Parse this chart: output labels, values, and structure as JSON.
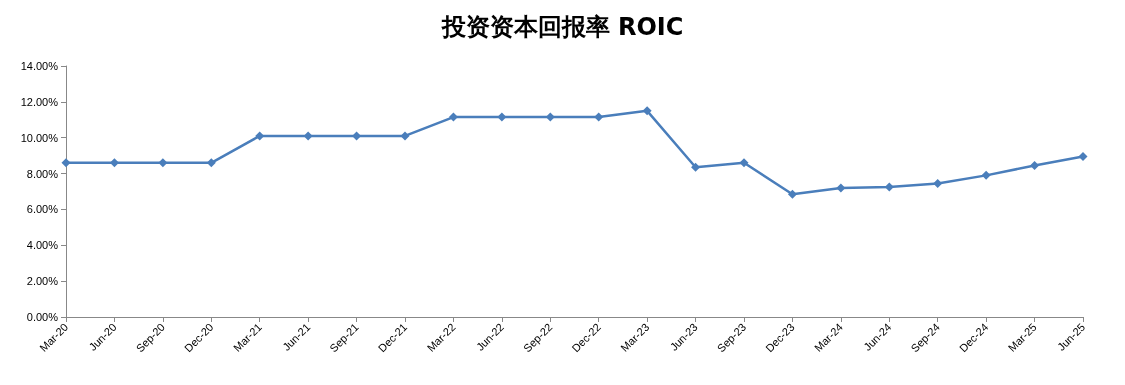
{
  "chart_data": {
    "type": "line",
    "title": "投资资本回报率 ROIC",
    "categories": [
      "Mar-20",
      "Jun-20",
      "Sep-20",
      "Dec-20",
      "Mar-21",
      "Jun-21",
      "Sep-21",
      "Dec-21",
      "Mar-22",
      "Jun-22",
      "Sep-22",
      "Dec-22",
      "Mar-23",
      "Jun-23",
      "Sep-23",
      "Dec-23",
      "Mar-24",
      "Jun-24",
      "Sep-24",
      "Dec-24",
      "Mar-25",
      "Jun-25"
    ],
    "series": [
      {
        "color": "#4a7ebb",
        "values": [
          8.6,
          8.6,
          8.6,
          8.6,
          10.1,
          10.1,
          10.1,
          10.1,
          11.15,
          11.15,
          11.15,
          11.15,
          11.5,
          8.35,
          8.6,
          6.85,
          7.2,
          7.25,
          7.45,
          7.9,
          8.45,
          8.95
        ]
      }
    ],
    "ylim": [
      0,
      14
    ],
    "yticks": [
      {
        "value": 0,
        "label": "0.00%"
      },
      {
        "value": 2,
        "label": "2.00%"
      },
      {
        "value": 4,
        "label": "4.00%"
      },
      {
        "value": 6,
        "label": "6.00%"
      },
      {
        "value": 8,
        "label": "8.00%"
      },
      {
        "value": 10,
        "label": "10.00%"
      },
      {
        "value": 12,
        "label": "12.00%"
      },
      {
        "value": 14,
        "label": "14.00%"
      }
    ],
    "grid": false,
    "marker": "diamond",
    "line_style": "solid"
  }
}
